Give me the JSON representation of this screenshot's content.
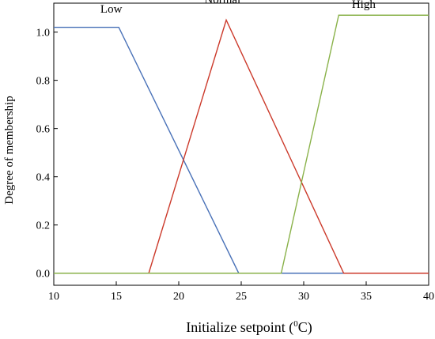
{
  "chart_data": {
    "type": "line",
    "title": "",
    "xlabel": "Initialize setpoint (",
    "xlabel_sup": "0",
    "xlabel_unit": "C)",
    "ylabel": "Degree of membership",
    "xlim": [
      10,
      40
    ],
    "ylim": [
      -0.05,
      1.12
    ],
    "x_ticks": [
      "10",
      "15",
      "20",
      "25",
      "30",
      "35",
      "40"
    ],
    "y_ticks": [
      "0.0",
      "0.2",
      "0.4",
      "0.6",
      "0.8",
      "1.0"
    ],
    "grid": false,
    "series": [
      {
        "name": "Low",
        "color": "#4a72b8",
        "x": [
          10,
          15.2,
          24.8,
          40
        ],
        "y": [
          1.02,
          1.02,
          0.0,
          0.0
        ],
        "label_at": [
          14.6,
          1.08
        ]
      },
      {
        "name": "Normal",
        "color": "#cc3a2b",
        "x": [
          10,
          17.6,
          23.8,
          33.2,
          40
        ],
        "y": [
          0.0,
          0.0,
          1.05,
          0.0,
          0.0
        ],
        "label_at": [
          23.5,
          1.12
        ]
      },
      {
        "name": "High",
        "color": "#8ab24a",
        "x": [
          10,
          28.2,
          32.8,
          40
        ],
        "y": [
          0.0,
          0.0,
          1.07,
          1.07
        ],
        "label_at": [
          34.8,
          1.1
        ]
      }
    ]
  }
}
